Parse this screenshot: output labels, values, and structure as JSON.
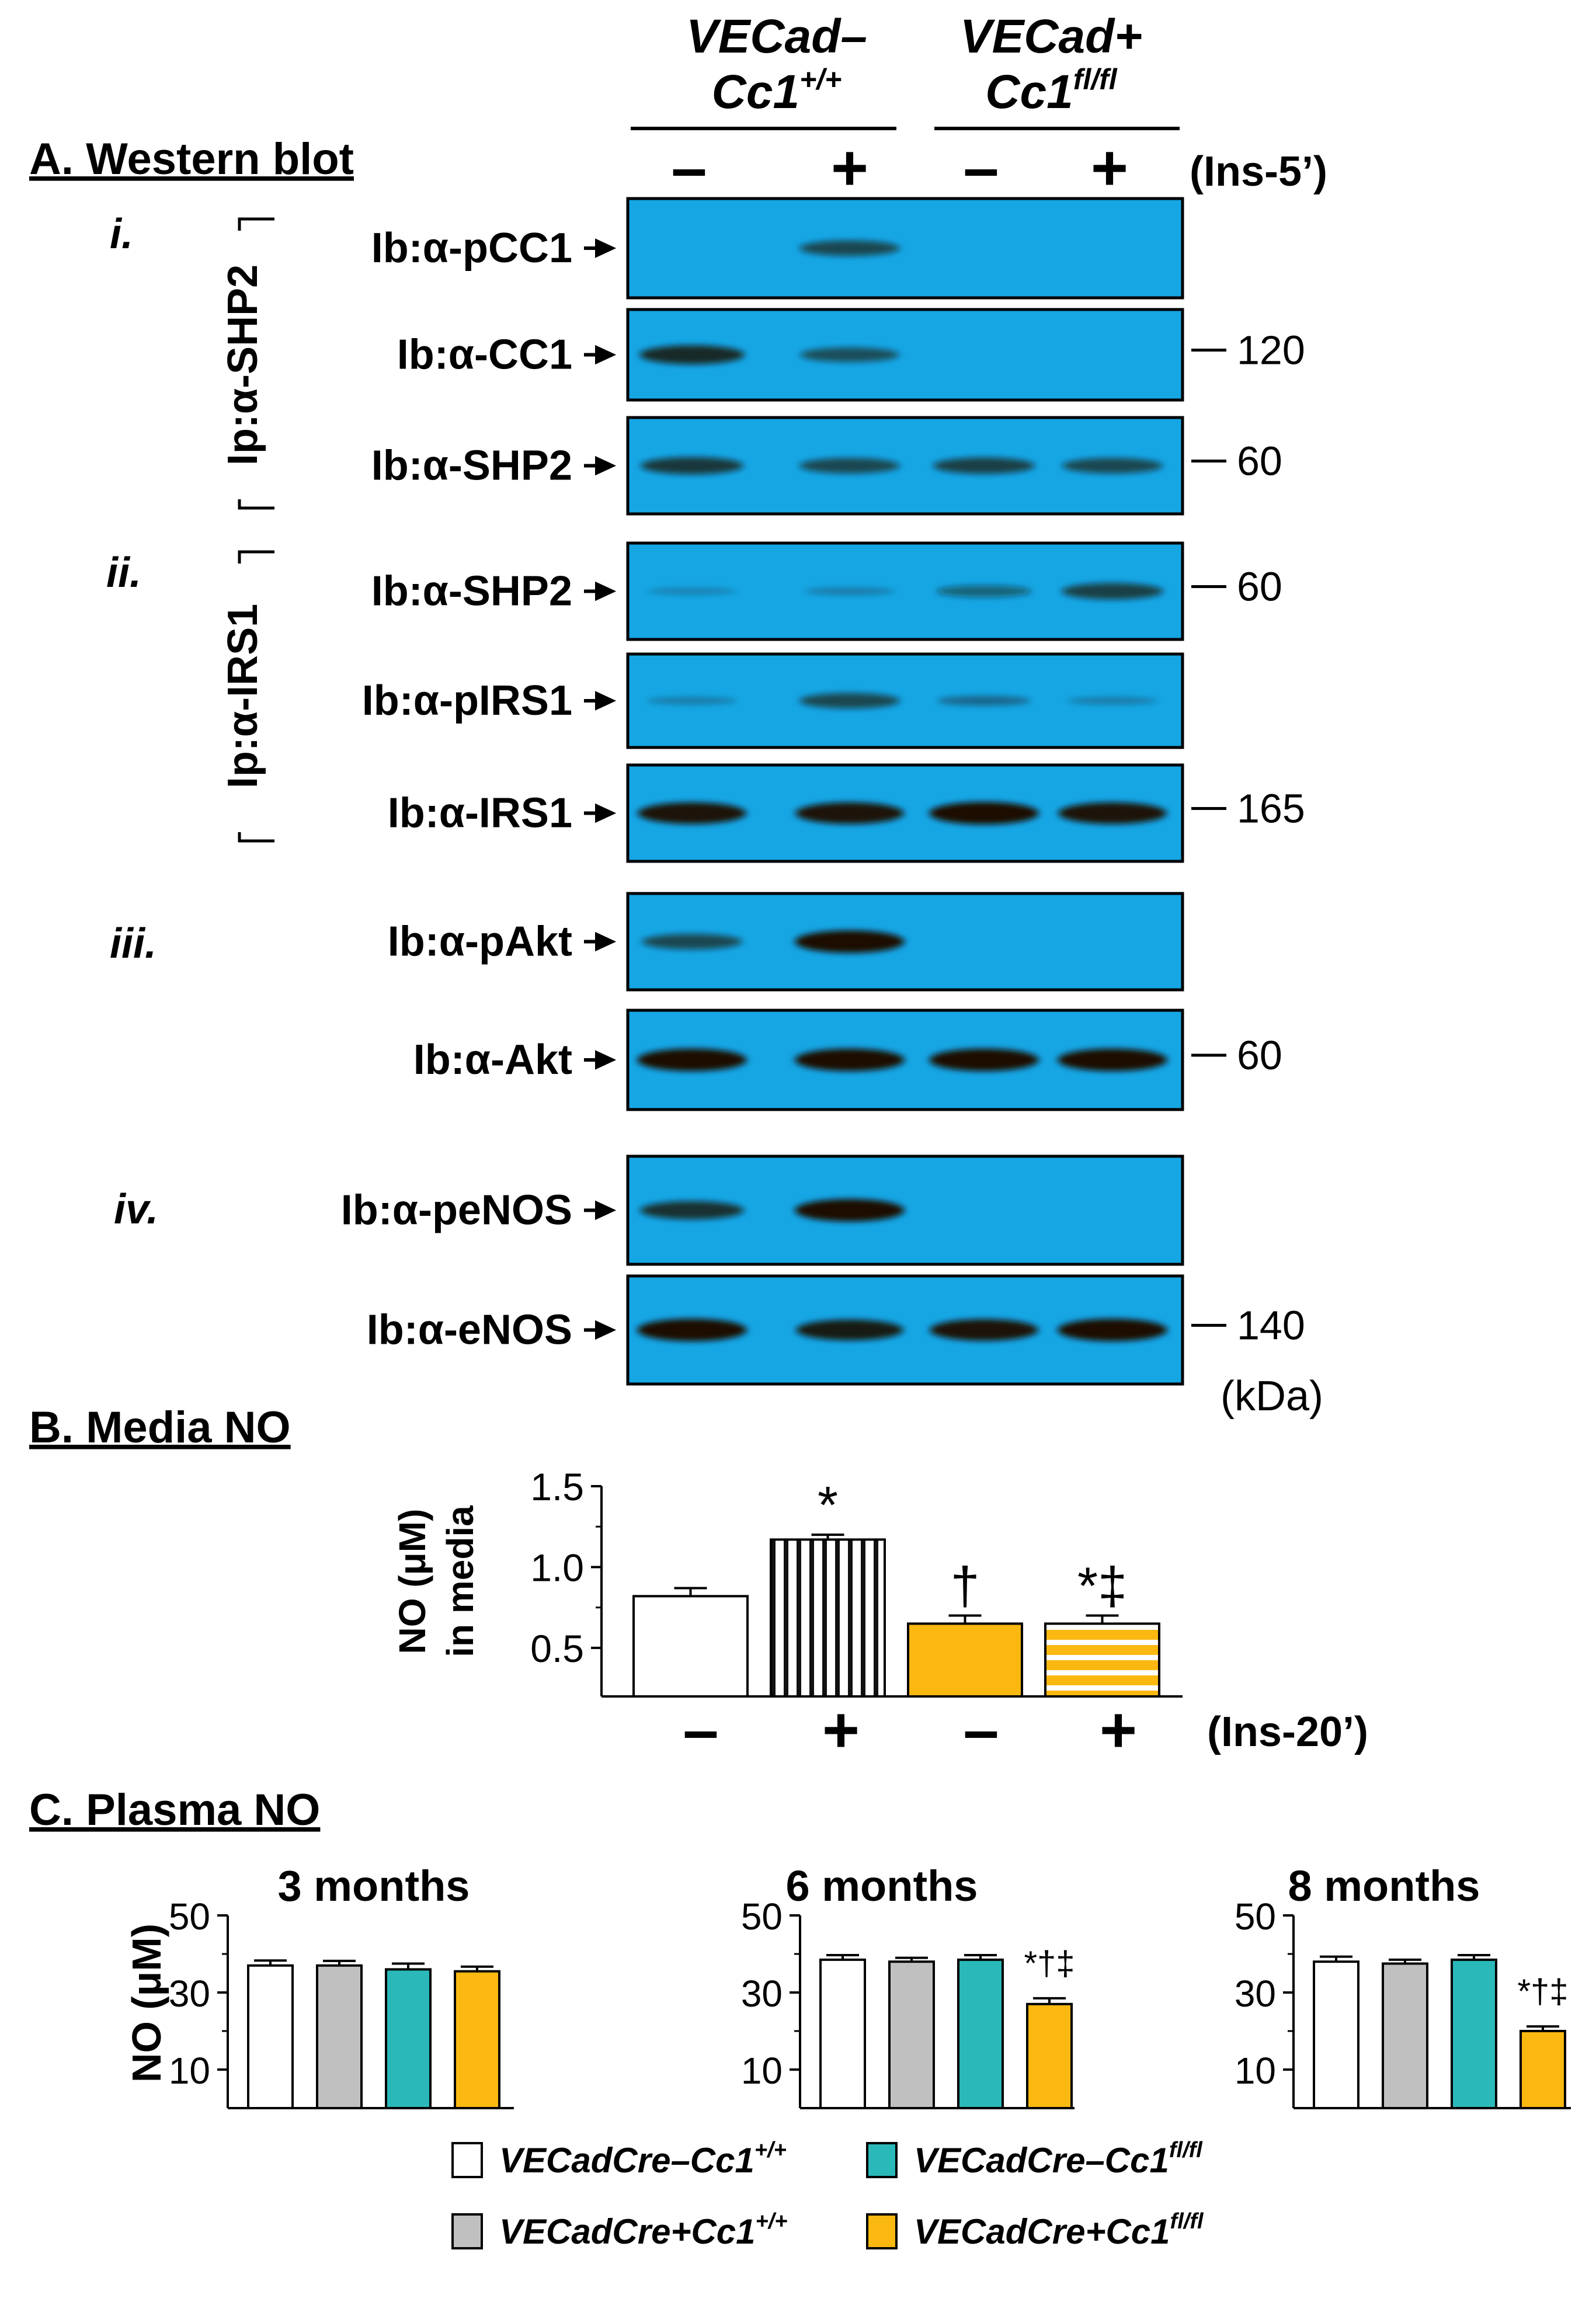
{
  "panel_a": {
    "title": "A. Western blot",
    "groups": [
      {
        "line1": "VECad–",
        "line2_base": "Cc1",
        "line2_sup": "+/+"
      },
      {
        "line1": "VECad+",
        "line2_base": "Cc1",
        "line2_sup": "fl/fl"
      }
    ],
    "treatment_signs": [
      "–",
      "+",
      "–",
      "+"
    ],
    "treatment_label": "(Ins-5’)",
    "ip_labels": [
      "Ip:α-SHP2",
      "Ip:α-IRS1"
    ],
    "sections": [
      "i.",
      "ii.",
      "iii.",
      "iv."
    ],
    "blots": [
      {
        "label": "Ib:α-pCC1",
        "marker": "",
        "bands": [
          0,
          0.55,
          0,
          0
        ]
      },
      {
        "label": "Ib:α-CC1",
        "marker": "120",
        "bands": [
          0.75,
          0.5,
          0,
          0
        ]
      },
      {
        "label": "Ib:α-SHP2",
        "marker": "60",
        "bands": [
          0.65,
          0.55,
          0.6,
          0.55
        ]
      },
      {
        "label": "Ib:α-SHP2",
        "marker": "60",
        "bands": [
          0.08,
          0.12,
          0.35,
          0.6
        ]
      },
      {
        "label": "Ib:α-pIRS1",
        "marker": "",
        "bands": [
          0.12,
          0.55,
          0.25,
          0.12
        ]
      },
      {
        "label": "Ib:α-IRS1",
        "marker": "165",
        "bands": [
          0.9,
          0.9,
          0.95,
          0.9
        ]
      },
      {
        "label": "Ib:α-pAkt",
        "marker": "",
        "bands": [
          0.55,
          0.95,
          0,
          0
        ]
      },
      {
        "label": "Ib:α-Akt",
        "marker": "60",
        "bands": [
          0.95,
          0.95,
          0.95,
          0.95
        ]
      },
      {
        "label": "Ib:α-peNOS",
        "marker": "",
        "bands": [
          0.7,
          0.95,
          0,
          0
        ]
      },
      {
        "label": "Ib:α-eNOS",
        "marker": "140",
        "bands": [
          0.95,
          0.85,
          0.9,
          0.95
        ]
      }
    ],
    "unit": "(kDa)",
    "colors": {
      "membrane": "#16a6e4",
      "band": "#1a1005"
    }
  },
  "panel_b": {
    "title": "B. Media NO",
    "ylabel_line1": "NO (μM)",
    "ylabel_line2": "in media",
    "treatment_signs": [
      "–",
      "+",
      "–",
      "+"
    ],
    "treatment_label": "(Ins-20’)"
  },
  "panel_c": {
    "title": "C. Plasma NO",
    "ylabel": "NO (μM)"
  },
  "legend": [
    {
      "base": "VECadCre–Cc1",
      "sup": "+/+",
      "color": "#ffffff"
    },
    {
      "base": "VECadCre–Cc1",
      "sup": "fl/fl",
      "color": "#2ab8b8"
    },
    {
      "base": "VECadCre+Cc1",
      "sup": "+/+",
      "color": "#c0c0c0"
    },
    {
      "base": "VECadCre+Cc1",
      "sup": "fl/fl",
      "color": "#fbb810"
    }
  ],
  "chart_data": [
    {
      "type": "bar",
      "categories": [
        "–",
        "+",
        "–",
        "+"
      ],
      "values": [
        0.82,
        1.17,
        0.65,
        0.65
      ],
      "errors": [
        0.05,
        0.03,
        0.05,
        0.05
      ],
      "annotations": [
        "",
        "*",
        "†",
        "*‡"
      ],
      "fills": [
        "white",
        "vertical-stripes",
        "#fbb810",
        "horizontal-stripes-yellow"
      ],
      "yticks": [
        0.5,
        1.0,
        1.5
      ],
      "ytick_labels": [
        "0.5",
        "1.0",
        "1.5"
      ],
      "ylim": [
        0.2,
        1.5
      ],
      "ylabel": "NO (μM) in media",
      "xlabel": "(Ins-20’)"
    },
    {
      "type": "bar",
      "title": "3 months",
      "categories": [
        "VECadCre–Cc1+/+",
        "VECadCre+Cc1+/+",
        "VECadCre–Cc1fl/fl",
        "VECadCre+Cc1fl/fl"
      ],
      "values": [
        37,
        37,
        36,
        35.5
      ],
      "errors": [
        1.3,
        1.2,
        1.5,
        1.2
      ],
      "annotations": [
        "",
        "",
        "",
        ""
      ],
      "yticks": [
        10,
        30,
        50
      ],
      "ytick_labels": [
        "10",
        "30",
        "50"
      ],
      "ylim": [
        0,
        50
      ],
      "ylabel": "NO (μM)"
    },
    {
      "type": "bar",
      "title": "6 months",
      "categories": [
        "VECadCre–Cc1+/+",
        "VECadCre+Cc1+/+",
        "VECadCre–Cc1fl/fl",
        "VECadCre+Cc1fl/fl"
      ],
      "values": [
        38.5,
        38,
        38.5,
        27
      ],
      "errors": [
        1.2,
        1.0,
        1.2,
        1.5
      ],
      "annotations": [
        "",
        "",
        "",
        "*†‡"
      ],
      "yticks": [
        10,
        30,
        50
      ],
      "ytick_labels": [
        "10",
        "30",
        "50"
      ],
      "ylim": [
        0,
        50
      ]
    },
    {
      "type": "bar",
      "title": "8 months",
      "categories": [
        "VECadCre–Cc1+/+",
        "VECadCre+Cc1+/+",
        "VECadCre–Cc1fl/fl",
        "VECadCre+Cc1fl/fl"
      ],
      "values": [
        38,
        37.5,
        38.5,
        20
      ],
      "errors": [
        1.3,
        1.0,
        1.2,
        1.2
      ],
      "annotations": [
        "",
        "",
        "",
        "*†‡"
      ],
      "yticks": [
        10,
        30,
        50
      ],
      "ytick_labels": [
        "10",
        "30",
        "50"
      ],
      "ylim": [
        0,
        50
      ]
    }
  ]
}
